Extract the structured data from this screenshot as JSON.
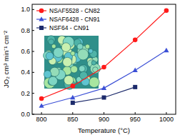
{
  "chart_data": {
    "type": "line",
    "x_label": "Temperature (°C)",
    "y_label": "JO₂ cm³ min⁻¹ cm⁻²",
    "x": [
      800,
      850,
      900,
      950,
      1000
    ],
    "series": [
      {
        "name": "NSAF5528 - CN82",
        "color": "#ff1a1a",
        "marker": "circle",
        "values": [
          0.15,
          0.27,
          0.45,
          0.71,
          0.99
        ]
      },
      {
        "name": "NSAF6428 - CN91",
        "color": "#3b4fd6",
        "marker": "triangle",
        "values": [
          0.08,
          0.16,
          0.25,
          0.42,
          0.61
        ]
      },
      {
        "name": "NSF64 - CN91",
        "color": "#1c2a6b",
        "marker": "square",
        "values": [
          null,
          0.11,
          0.16,
          0.26,
          null
        ]
      }
    ],
    "xlim": [
      785,
      1015
    ],
    "xticks": [
      800,
      850,
      900,
      950,
      1000
    ],
    "ylim": [
      0,
      1.05
    ],
    "yticks": [
      {
        "value": 0,
        "label": "0.0"
      },
      0.2,
      0.4,
      0.6,
      0.8,
      {
        "value": 1,
        "label": "1.0"
      }
    ],
    "legend": "upper left",
    "grid": false
  }
}
